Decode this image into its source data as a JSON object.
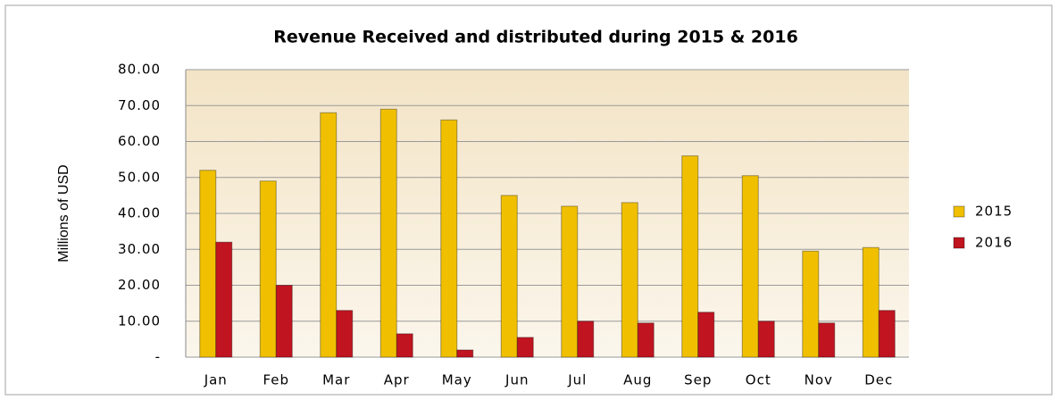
{
  "chart_data": {
    "type": "bar",
    "title": "Revenue Received and distributed during 2015 & 2016",
    "y_label": "Millions of USD",
    "categories": [
      "Jan",
      "Feb",
      "Mar",
      "Apr",
      "May",
      "Jun",
      "Jul",
      "Aug",
      "Sep",
      "Oct",
      "Nov",
      "Dec"
    ],
    "series": [
      {
        "name": "2015",
        "color": "#f0c000",
        "values": [
          52,
          49,
          68,
          69,
          66,
          45,
          42,
          43,
          56,
          50.5,
          29.5,
          30.5
        ]
      },
      {
        "name": "2016",
        "color": "#c01420",
        "values": [
          32,
          20,
          13,
          6.5,
          2,
          5.5,
          10,
          9.5,
          12.5,
          10,
          9.5,
          13
        ]
      }
    ],
    "ylim": [
      0,
      80
    ],
    "yticks": [
      {
        "value": 0,
        "label": "-"
      },
      {
        "value": 10,
        "label": "10.00"
      },
      {
        "value": 20,
        "label": "20.00"
      },
      {
        "value": 30,
        "label": "30.00"
      },
      {
        "value": 40,
        "label": "40.00"
      },
      {
        "value": 50,
        "label": "50.00"
      },
      {
        "value": 60,
        "label": "60.00"
      },
      {
        "value": 70,
        "label": "70.00"
      },
      {
        "value": 80,
        "label": "80.00"
      }
    ],
    "grid": true,
    "legend": "right"
  }
}
